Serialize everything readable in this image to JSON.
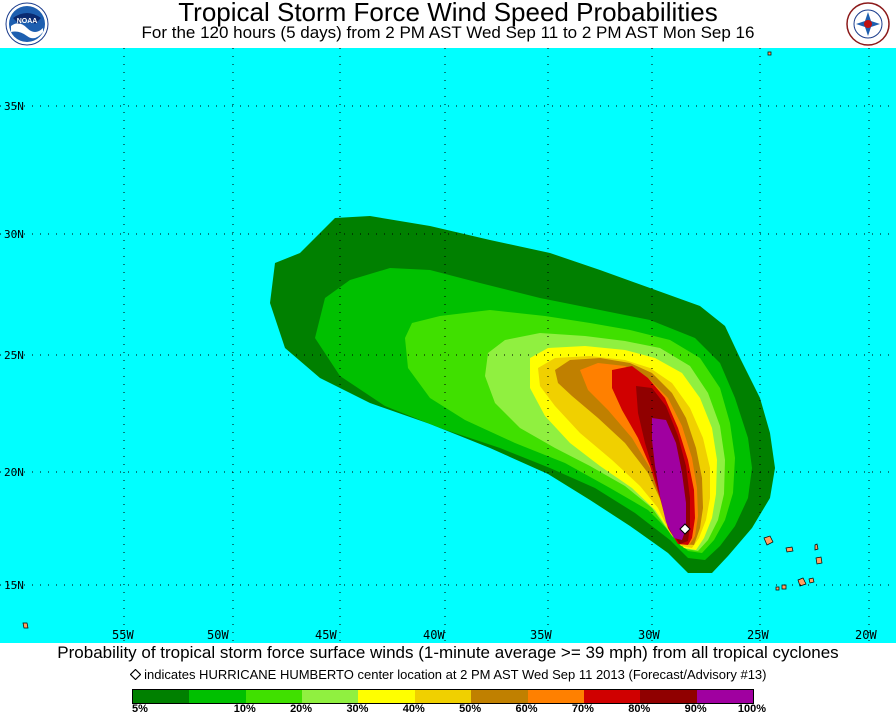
{
  "header": {
    "title": "Tropical Storm Force Wind Speed Probabilities",
    "subtitle": "For the 120 hours (5 days) from 2 PM AST Wed Sep 11 to 2 PM AST Mon Sep 16",
    "logo_left": "NOAA",
    "logo_right": "NATIONAL WEATHER SERVICE"
  },
  "map": {
    "ocean_color": "#00ffff",
    "land_color": "#ffa060",
    "lat_labels": [
      "35N",
      "30N",
      "25N",
      "20N",
      "15N"
    ],
    "lon_labels": [
      "55W",
      "50W",
      "45W",
      "40W",
      "35W",
      "30W",
      "25W",
      "20W"
    ],
    "storm_marker": "diamond"
  },
  "footer": {
    "caption": "Probability of tropical storm force surface winds (1-minute average >= 39 mph) from all tropical cyclones",
    "note": "indicates HURRICANE HUMBERTO center location at 2 PM AST Wed Sep 11 2013 (Forecast/Advisory #13)"
  },
  "legend": {
    "colors": [
      "#008000",
      "#00c000",
      "#40e000",
      "#90f040",
      "#ffff00",
      "#f0d000",
      "#c08000",
      "#ff8000",
      "#d00000",
      "#900000",
      "#a000a0"
    ],
    "labels": [
      "5%",
      "10%",
      "20%",
      "30%",
      "40%",
      "50%",
      "60%",
      "70%",
      "80%",
      "90%",
      "100%"
    ]
  }
}
